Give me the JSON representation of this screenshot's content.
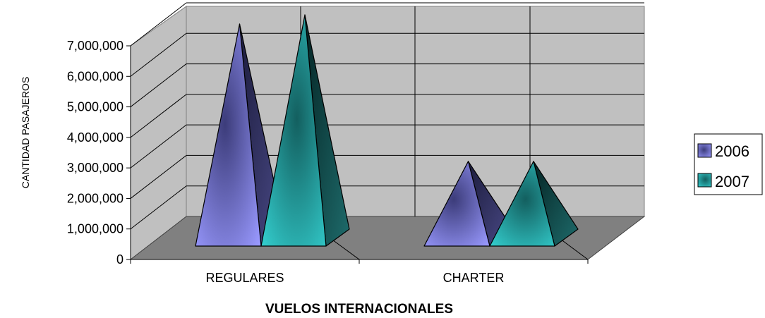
{
  "chart_data": {
    "type": "bar",
    "style": "3d-pyramid",
    "categories": [
      "REGULARES",
      "CHARTER"
    ],
    "series": [
      {
        "name": "2006",
        "values": [
          7000000,
          2500000
        ]
      },
      {
        "name": "2007",
        "values": [
          7300000,
          2500000
        ]
      }
    ],
    "xlabel": "VUELOS INTERNACIONALES",
    "ylabel": "CANTIDAD PASAJEROS",
    "ylim": [
      0,
      7000000
    ],
    "yticks": [
      "0",
      "1,000,000",
      "2,000,000",
      "3,000,000",
      "4,000,000",
      "5,000,000",
      "6,000,000",
      "7,000,000"
    ],
    "grid": true,
    "legend": "right",
    "colors": {
      "2006": "#9999ff",
      "2007": "#33cccc",
      "wall": "#c0c0c0",
      "floor": "#808080"
    }
  }
}
